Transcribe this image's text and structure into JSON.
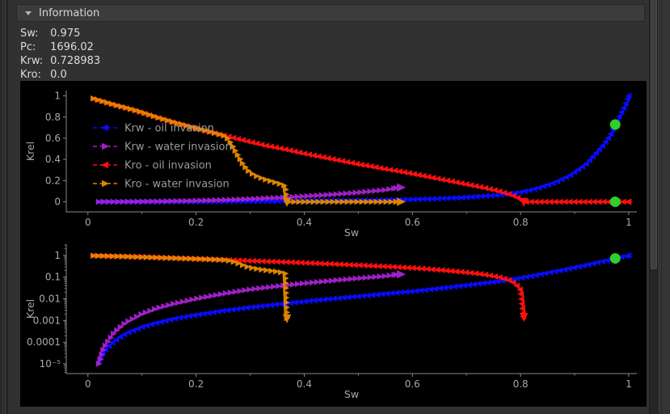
{
  "panel": {
    "title": "Information"
  },
  "info": {
    "rows": [
      {
        "label": "Sw:",
        "value": "0.975"
      },
      {
        "label": "Pc:",
        "value": "1696.02"
      },
      {
        "label": "Krw:",
        "value": "0.728983"
      },
      {
        "label": "Kro:",
        "value": "0.0"
      }
    ]
  },
  "colors": {
    "panel_bg": "#313131",
    "header_bg": "#3c3c3c",
    "figure_bg": "#000000",
    "axis": "#8a8a8a",
    "tick_label": "#a8a8a8",
    "legend_text": "#9a9a9a",
    "highlight": "#2dd02d"
  },
  "chart_data": {
    "type": "line",
    "series": [
      {
        "id": "krw-oil",
        "name": "Krw - oil invasion",
        "color": "#0a0aff",
        "marker": "left",
        "points": [
          [
            0.02,
            1.2e-05
          ],
          [
            0.03,
            4e-05
          ],
          [
            0.05,
            0.00012
          ],
          [
            0.07,
            0.00025
          ],
          [
            0.1,
            0.0005
          ],
          [
            0.13,
            0.0008
          ],
          [
            0.16,
            0.0012
          ],
          [
            0.2,
            0.0018
          ],
          [
            0.25,
            0.0028
          ],
          [
            0.3,
            0.004
          ],
          [
            0.35,
            0.0055
          ],
          [
            0.4,
            0.0075
          ],
          [
            0.45,
            0.01
          ],
          [
            0.5,
            0.013
          ],
          [
            0.55,
            0.017
          ],
          [
            0.6,
            0.022
          ],
          [
            0.65,
            0.03
          ],
          [
            0.7,
            0.042
          ],
          [
            0.75,
            0.06
          ],
          [
            0.78,
            0.075
          ],
          [
            0.8,
            0.09
          ],
          [
            0.83,
            0.125
          ],
          [
            0.86,
            0.175
          ],
          [
            0.89,
            0.245
          ],
          [
            0.92,
            0.35
          ],
          [
            0.95,
            0.52
          ],
          [
            0.965,
            0.62
          ],
          [
            0.975,
            0.729
          ],
          [
            0.985,
            0.83
          ],
          [
            0.995,
            0.93
          ],
          [
            1.0,
            1.0
          ]
        ]
      },
      {
        "id": "krw-water",
        "name": "Krw - water invasion",
        "color": "#a020c8",
        "marker": "right",
        "points": [
          [
            0.02,
            1e-05
          ],
          [
            0.03,
            6e-05
          ],
          [
            0.05,
            0.0003
          ],
          [
            0.07,
            0.0008
          ],
          [
            0.1,
            0.002
          ],
          [
            0.13,
            0.0038
          ],
          [
            0.16,
            0.006
          ],
          [
            0.2,
            0.01
          ],
          [
            0.25,
            0.017
          ],
          [
            0.3,
            0.027
          ],
          [
            0.35,
            0.038
          ],
          [
            0.4,
            0.052
          ],
          [
            0.45,
            0.068
          ],
          [
            0.5,
            0.088
          ],
          [
            0.55,
            0.112
          ],
          [
            0.57,
            0.13
          ]
        ],
        "arrows": [
          {
            "x": 0.578,
            "y": 0.135,
            "dir": "right"
          }
        ]
      },
      {
        "id": "kro-oil",
        "name": "Kro - oil invasion",
        "color": "#ff0f0f",
        "marker": "left",
        "points": [
          [
            0.01,
            0.97
          ],
          [
            0.03,
            0.94
          ],
          [
            0.05,
            0.91
          ],
          [
            0.08,
            0.87
          ],
          [
            0.1,
            0.84
          ],
          [
            0.13,
            0.79
          ],
          [
            0.16,
            0.745
          ],
          [
            0.2,
            0.69
          ],
          [
            0.24,
            0.64
          ],
          [
            0.28,
            0.59
          ],
          [
            0.32,
            0.54
          ],
          [
            0.36,
            0.5
          ],
          [
            0.4,
            0.455
          ],
          [
            0.45,
            0.405
          ],
          [
            0.5,
            0.355
          ],
          [
            0.55,
            0.31
          ],
          [
            0.6,
            0.265
          ],
          [
            0.65,
            0.215
          ],
          [
            0.7,
            0.165
          ],
          [
            0.73,
            0.135
          ],
          [
            0.76,
            0.1
          ],
          [
            0.78,
            0.07
          ],
          [
            0.79,
            0.05
          ],
          [
            0.8,
            0.025
          ],
          [
            0.805,
            0.0015
          ],
          [
            0.81,
            0.0
          ],
          [
            0.85,
            0.0
          ],
          [
            0.9,
            0.0
          ],
          [
            0.95,
            0.0
          ],
          [
            1.0,
            0.0
          ]
        ],
        "arrows": [
          {
            "x": 0.806,
            "y": 0.0015,
            "dir": "down"
          }
        ]
      },
      {
        "id": "kro-water",
        "name": "Kro - water invasion",
        "color": "#dd8500",
        "marker": "right",
        "points": [
          [
            0.01,
            0.975
          ],
          [
            0.03,
            0.945
          ],
          [
            0.05,
            0.915
          ],
          [
            0.08,
            0.875
          ],
          [
            0.1,
            0.845
          ],
          [
            0.13,
            0.795
          ],
          [
            0.16,
            0.75
          ],
          [
            0.2,
            0.695
          ],
          [
            0.23,
            0.655
          ],
          [
            0.255,
            0.62
          ],
          [
            0.265,
            0.55
          ],
          [
            0.275,
            0.46
          ],
          [
            0.285,
            0.37
          ],
          [
            0.295,
            0.3
          ],
          [
            0.305,
            0.26
          ],
          [
            0.315,
            0.235
          ],
          [
            0.325,
            0.215
          ],
          [
            0.335,
            0.2
          ],
          [
            0.345,
            0.185
          ],
          [
            0.355,
            0.17
          ],
          [
            0.365,
            0.15
          ],
          [
            0.368,
            0.0013
          ],
          [
            0.372,
            0.0
          ],
          [
            0.4,
            0.0
          ],
          [
            0.45,
            0.0
          ],
          [
            0.5,
            0.0
          ],
          [
            0.55,
            0.0
          ],
          [
            0.57,
            0.0
          ]
        ],
        "arrows": [
          {
            "x": 0.578,
            "y": 0.0,
            "dir": "right"
          },
          {
            "x": 0.368,
            "y": 0.0013,
            "dir": "down"
          }
        ]
      }
    ],
    "highlight": {
      "color": "#2dd02d",
      "points": [
        {
          "x": 0.975,
          "y": 0.728983,
          "charts": [
            0,
            1
          ]
        },
        {
          "x": 0.975,
          "y": 0.0,
          "charts": [
            0
          ]
        }
      ]
    },
    "charts": [
      {
        "yscale": "linear",
        "xlabel": "Sw",
        "ylabel": "Krel",
        "xlim": [
          -0.04,
          1.015
        ],
        "ylim": [
          -0.095,
          1.05
        ],
        "xticks": [
          0,
          0.2,
          0.4,
          0.6,
          0.8,
          1
        ],
        "xtick_labels": [
          "0",
          "0.2",
          "0.4",
          "0.6",
          "0.8",
          "1"
        ],
        "xminor": [
          0.1,
          0.3,
          0.5,
          0.7,
          0.9
        ],
        "yticks": [
          0,
          0.2,
          0.4,
          0.6,
          0.8,
          1
        ],
        "ytick_labels": [
          "0",
          "0.2",
          "0.4",
          "0.6",
          "0.8",
          "1"
        ],
        "legend": true,
        "grid": false
      },
      {
        "yscale": "log",
        "xlabel": "Sw",
        "ylabel": "Krel",
        "xlim": [
          -0.04,
          1.015
        ],
        "ylim": [
          3.55e-06,
          3.3
        ],
        "xticks": [
          0,
          0.2,
          0.4,
          0.6,
          0.8,
          1
        ],
        "xtick_labels": [
          "0",
          "0.2",
          "0.4",
          "0.6",
          "0.8",
          "1"
        ],
        "xminor": [
          0.1,
          0.3,
          0.5,
          0.7,
          0.9
        ],
        "yticks": [
          1,
          0.1,
          0.01,
          0.001,
          0.0001,
          1e-05
        ],
        "ytick_labels": [
          "1",
          "0.1",
          "0.01",
          "0.001",
          "0.0001",
          "10⁻⁵"
        ],
        "legend": false,
        "grid": false
      }
    ],
    "legend_location": "upper left"
  }
}
